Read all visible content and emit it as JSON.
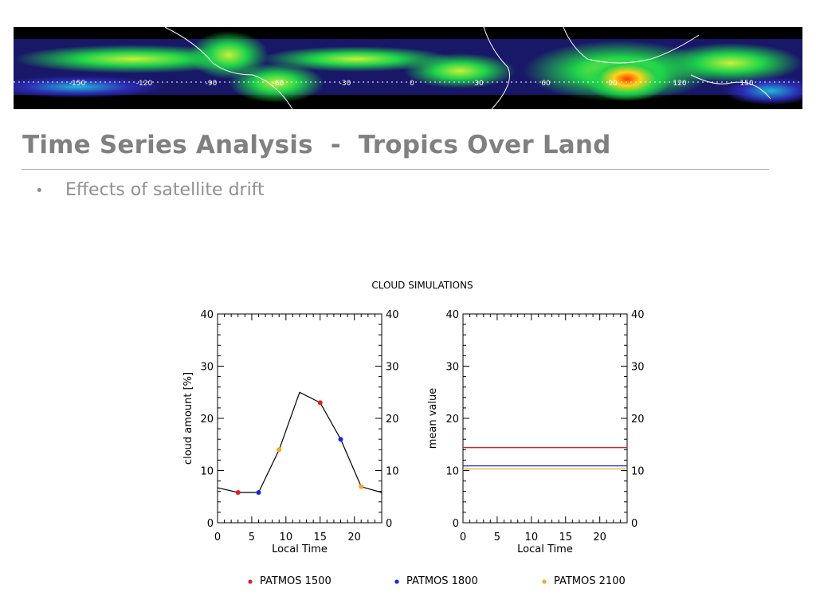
{
  "slide": {
    "title": "Time Series Analysis  -  Tropics Over Land",
    "bullets": [
      "Effects of satellite drift"
    ]
  },
  "banner": {
    "description_icon": "satellite-cloud-map",
    "longitude_labels": [
      "-150",
      "-120",
      "-90",
      "-60",
      "-30",
      "0",
      "30",
      "60",
      "90",
      "120",
      "150"
    ],
    "colors": {
      "background": "#000000",
      "low": "#1c1a73",
      "mid": "#1fd44a",
      "high": "#ffd21a",
      "peak": "#ff3a00",
      "coast": "#ffffff"
    }
  },
  "chart_data": [
    {
      "type": "line",
      "title": "CLOUD SIMULATIONS",
      "xlabel": "Local Time",
      "ylabel": "cloud amount [%]",
      "xlim": [
        0,
        24
      ],
      "ylim": [
        0,
        40
      ],
      "xticks": [
        0,
        5,
        10,
        15,
        20
      ],
      "yticks": [
        0,
        10,
        20,
        30,
        40
      ],
      "series": [
        {
          "x": [
            0,
            3,
            6,
            9,
            12,
            15,
            18,
            21,
            24
          ],
          "y": [
            6.7,
            5.8,
            5.8,
            14,
            25,
            23,
            16,
            6.9,
            5.8
          ],
          "color": "#000000"
        }
      ],
      "points": [
        {
          "x": 3,
          "y": 5.8,
          "color": "#e0201e"
        },
        {
          "x": 6,
          "y": 5.8,
          "color": "#1428e0"
        },
        {
          "x": 9,
          "y": 14,
          "color": "#f5a623"
        },
        {
          "x": 15,
          "y": 23,
          "color": "#e0201e"
        },
        {
          "x": 18,
          "y": 16,
          "color": "#1428e0"
        },
        {
          "x": 21,
          "y": 6.9,
          "color": "#f5a623"
        }
      ]
    },
    {
      "type": "line",
      "xlabel": "Local Time",
      "ylabel": "mean value",
      "xlim": [
        0,
        24
      ],
      "ylim": [
        0,
        40
      ],
      "xticks": [
        0,
        5,
        10,
        15,
        20
      ],
      "yticks": [
        0,
        10,
        20,
        30,
        40
      ],
      "series": [
        {
          "name": "PATMOS 1500",
          "y": 14.4,
          "color": "#e0201e"
        },
        {
          "name": "PATMOS 1800",
          "y": 10.9,
          "color": "#1428e0"
        },
        {
          "name": "PATMOS 2100",
          "y": 10.3,
          "color": "#f5a623"
        }
      ]
    }
  ],
  "legend": [
    {
      "label": "PATMOS 1500",
      "color": "#e0201e"
    },
    {
      "label": "PATMOS 1800",
      "color": "#1428e0"
    },
    {
      "label": "PATMOS 2100",
      "color": "#f5a623"
    }
  ]
}
